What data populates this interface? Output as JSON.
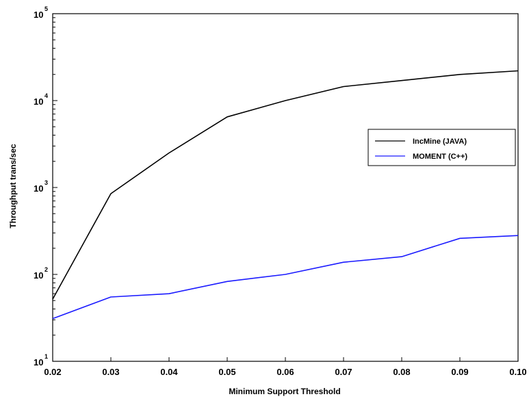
{
  "chart_data": {
    "type": "line",
    "title": "",
    "xlabel": "Minimum Support Threshold",
    "ylabel": "Throughput trans/sec",
    "xscale": "linear",
    "yscale": "log",
    "xlim": [
      0.02,
      0.1
    ],
    "ylim": [
      10,
      100000
    ],
    "grid": false,
    "legend_position": "right-middle",
    "x": [
      0.02,
      0.03,
      0.04,
      0.05,
      0.06,
      0.07,
      0.08,
      0.09,
      0.1
    ],
    "x_tick_labels": [
      "0.02",
      "0.03",
      "0.04",
      "0.05",
      "0.06",
      "0.07",
      "0.08",
      "0.09",
      "0.10"
    ],
    "y_ticks": [
      {
        "value": 10,
        "base": "10",
        "exp": "1"
      },
      {
        "value": 100,
        "base": "10",
        "exp": "2"
      },
      {
        "value": 1000,
        "base": "10",
        "exp": "3"
      },
      {
        "value": 10000,
        "base": "10",
        "exp": "4"
      },
      {
        "value": 100000,
        "base": "10",
        "exp": "5"
      }
    ],
    "series": [
      {
        "name": "IncMine (JAVA)",
        "color": "#000000",
        "values": [
          52,
          850,
          2500,
          6500,
          10000,
          14500,
          17000,
          20000,
          22000
        ]
      },
      {
        "name": "MOMENT (C++)",
        "color": "#1a1aff",
        "values": [
          31,
          55,
          60,
          83,
          100,
          138,
          160,
          260,
          280
        ]
      }
    ]
  }
}
